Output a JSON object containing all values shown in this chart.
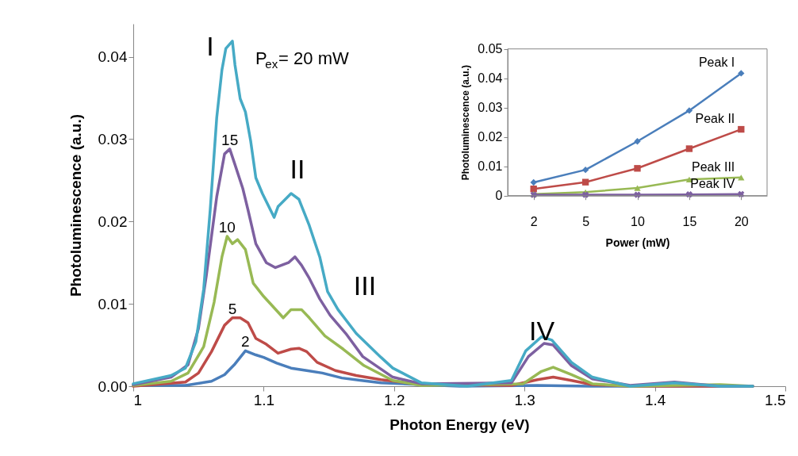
{
  "chart_data": [
    {
      "type": "line",
      "xlabel": "Photon Energy (eV)",
      "ylabel": "Photoluminescence (a.u.)",
      "xlim": [
        1,
        1.5
      ],
      "ylim": [
        0,
        0.044
      ],
      "xticks": [
        1,
        1.1,
        1.2,
        1.3,
        1.4,
        1.5
      ],
      "yticks": [
        {
          "value": 0,
          "label": "0.00"
        },
        {
          "value": 0.01,
          "label": "0.01"
        },
        {
          "value": 0.02,
          "label": "0.02"
        },
        {
          "value": 0.03,
          "label": "0.03"
        },
        {
          "value": 0.04,
          "label": "0.04"
        }
      ],
      "series": [
        {
          "name": "2",
          "color": "#4a7ebb",
          "x": [
            1.0,
            1.04,
            1.06,
            1.07,
            1.078,
            1.086,
            1.094,
            1.1,
            1.11,
            1.121,
            1.133,
            1.145,
            1.16,
            1.175,
            1.19,
            1.22,
            1.25,
            1.31,
            1.35,
            1.475
          ],
          "values": [
            0.0001,
            0.0001,
            0.0006,
            0.0014,
            0.0027,
            0.0043,
            0.0038,
            0.0035,
            0.0028,
            0.0022,
            0.0019,
            0.0016,
            0.001,
            0.0007,
            0.0004,
            0.0002,
            0.0,
            0.0001,
            0.0,
            0.0
          ]
        },
        {
          "name": "5",
          "color": "#be4b48",
          "x": [
            1.0,
            1.04,
            1.05,
            1.06,
            1.07,
            1.076,
            1.082,
            1.088,
            1.094,
            1.102,
            1.111,
            1.121,
            1.127,
            1.133,
            1.141,
            1.155,
            1.171,
            1.19,
            1.221,
            1.29,
            1.31,
            1.322,
            1.336,
            1.352,
            1.381,
            1.475
          ],
          "values": [
            0.0,
            0.0005,
            0.0016,
            0.0042,
            0.0074,
            0.0083,
            0.0083,
            0.0077,
            0.0058,
            0.0051,
            0.004,
            0.0045,
            0.0046,
            0.0042,
            0.0029,
            0.0019,
            0.0013,
            0.0008,
            0.0002,
            0.0001,
            0.0008,
            0.0011,
            0.0007,
            0.0002,
            0.0,
            0.0
          ]
        },
        {
          "name": "10",
          "color": "#98b954",
          "x": [
            1.0,
            1.029,
            1.042,
            1.054,
            1.062,
            1.068,
            1.072,
            1.076,
            1.08,
            1.086,
            1.092,
            1.1,
            1.111,
            1.115,
            1.121,
            1.129,
            1.135,
            1.147,
            1.161,
            1.177,
            1.199,
            1.221,
            1.299,
            1.313,
            1.322,
            1.336,
            1.352,
            1.381,
            1.45,
            1.475
          ],
          "values": [
            0.0001,
            0.0006,
            0.0016,
            0.0048,
            0.0102,
            0.0157,
            0.0182,
            0.0173,
            0.0178,
            0.0166,
            0.0125,
            0.0109,
            0.009,
            0.0083,
            0.0093,
            0.0093,
            0.0083,
            0.0061,
            0.0045,
            0.0025,
            0.0007,
            0.0001,
            0.0003,
            0.0018,
            0.0023,
            0.0014,
            0.0003,
            0.0,
            0.0002,
            0.0
          ]
        },
        {
          "name": "15",
          "color": "#7d60a0",
          "x": [
            1.0,
            1.029,
            1.042,
            1.05,
            1.056,
            1.064,
            1.07,
            1.074,
            1.078,
            1.084,
            1.088,
            1.094,
            1.102,
            1.109,
            1.119,
            1.124,
            1.129,
            1.135,
            1.143,
            1.151,
            1.163,
            1.176,
            1.199,
            1.221,
            1.29,
            1.303,
            1.315,
            1.322,
            1.336,
            1.352,
            1.381,
            1.415,
            1.45,
            1.475
          ],
          "values": [
            0.0002,
            0.0011,
            0.0026,
            0.007,
            0.0134,
            0.023,
            0.0282,
            0.0288,
            0.0269,
            0.024,
            0.0214,
            0.0173,
            0.015,
            0.0144,
            0.015,
            0.0157,
            0.0147,
            0.0131,
            0.0106,
            0.0086,
            0.0064,
            0.0036,
            0.0011,
            0.0003,
            0.0004,
            0.0036,
            0.0052,
            0.005,
            0.0025,
            0.0009,
            0.0001,
            0.0005,
            0.0,
            0.0
          ]
        },
        {
          "color": "#46aac5",
          "x": [
            1.0,
            1.029,
            1.04,
            1.048,
            1.054,
            1.059,
            1.064,
            1.068,
            1.071,
            1.076,
            1.078,
            1.082,
            1.086,
            1.09,
            1.094,
            1.099,
            1.108,
            1.111,
            1.121,
            1.127,
            1.135,
            1.143,
            1.149,
            1.157,
            1.171,
            1.19,
            1.199,
            1.221,
            1.256,
            1.29,
            1.301,
            1.313,
            1.321,
            1.336,
            1.352,
            1.381,
            1.415,
            1.45,
            1.475
          ],
          "values": [
            0.0003,
            0.0013,
            0.0022,
            0.0054,
            0.0118,
            0.0214,
            0.0326,
            0.0384,
            0.041,
            0.0419,
            0.039,
            0.0349,
            0.0333,
            0.0298,
            0.0253,
            0.0234,
            0.0205,
            0.0218,
            0.0234,
            0.0227,
            0.0195,
            0.0157,
            0.0115,
            0.0093,
            0.0064,
            0.0035,
            0.0022,
            0.0004,
            0.0,
            0.0007,
            0.0043,
            0.006,
            0.0056,
            0.0029,
            0.0011,
            0.0,
            0.0004,
            0.0,
            0.0
          ]
        }
      ],
      "annotations": [
        "P$_{ex}$= 20 mW",
        "I",
        "II",
        "III",
        "IV"
      ]
    },
    {
      "type": "line",
      "xlabel": "Power (mW)",
      "ylabel": "Photoluminescence (a.u.)",
      "categories": [
        "2",
        "5",
        "10",
        "15",
        "20"
      ],
      "ylim": [
        0,
        0.05
      ],
      "yticks": [
        0,
        0.01,
        0.02,
        0.03,
        0.04,
        0.05
      ],
      "series": [
        {
          "name": "Peak I",
          "color": "#4a7ebb",
          "marker": "diamond",
          "values": [
            0.0045,
            0.0088,
            0.0185,
            0.029,
            0.0417
          ]
        },
        {
          "name": "Peak II",
          "color": "#be4b48",
          "marker": "square",
          "values": [
            0.0023,
            0.0046,
            0.0093,
            0.016,
            0.0226
          ]
        },
        {
          "name": "Peak III",
          "color": "#98b954",
          "marker": "triangle",
          "values": [
            0.0005,
            0.0012,
            0.0026,
            0.0055,
            0.0062
          ]
        },
        {
          "name": "Peak IV",
          "color": "#7d60a0",
          "marker": "cross",
          "values": [
            0.0003,
            0.0003,
            0.0003,
            0.0004,
            0.0005
          ]
        }
      ]
    }
  ]
}
